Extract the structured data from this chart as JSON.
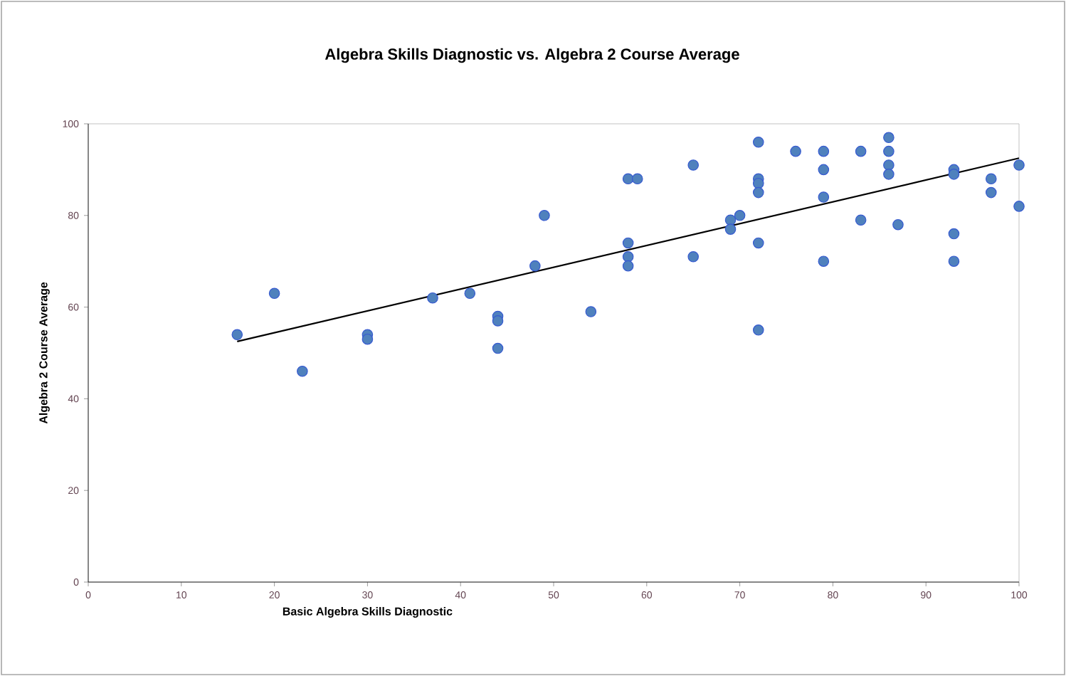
{
  "chart_data": {
    "type": "scatter",
    "title": "Algebra Skills Diagnostic vs. Algebra 2 Course Average",
    "xlabel": "Basic Algebra Skills Diagnostic",
    "ylabel": "Algebra 2 Course Average",
    "xlim": [
      0,
      100
    ],
    "xticks": [
      0,
      10,
      20,
      30,
      40,
      50,
      60,
      70,
      80,
      90,
      100
    ],
    "ylim": [
      0,
      100
    ],
    "yticks": [
      0,
      20,
      40,
      60,
      80,
      100
    ],
    "grid": false,
    "series": [
      {
        "marker": "circle",
        "color": "#4f81bd",
        "x": [
          16,
          20,
          23,
          30,
          30,
          37,
          41,
          44,
          44,
          44,
          48,
          49,
          54,
          58,
          58,
          58,
          58,
          59,
          65,
          65,
          69,
          69,
          70,
          72,
          72,
          72,
          72,
          72,
          72,
          76,
          79,
          79,
          79,
          79,
          83,
          83,
          86,
          86,
          86,
          86,
          87,
          93,
          93,
          93,
          93,
          97,
          97,
          100,
          100
        ],
        "values": [
          54,
          63,
          46,
          54,
          53,
          62,
          63,
          58,
          57,
          51,
          69,
          80,
          59,
          88,
          74,
          71,
          69,
          88,
          91,
          71,
          79,
          77,
          80,
          96,
          88,
          87,
          85,
          74,
          55,
          94,
          94,
          90,
          84,
          70,
          94,
          79,
          97,
          94,
          91,
          89,
          78,
          90,
          89,
          76,
          70,
          88,
          85,
          91,
          82
        ]
      },
      {
        "type": "line",
        "color": "#000000",
        "x": [
          16,
          100
        ],
        "values": [
          52.5,
          92.5
        ]
      }
    ]
  }
}
